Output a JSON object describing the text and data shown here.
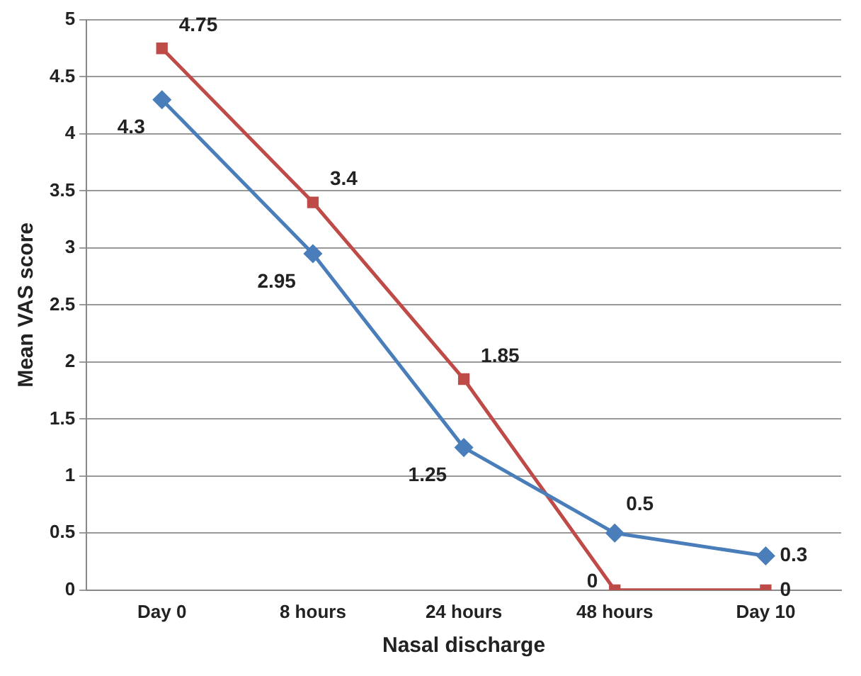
{
  "chart_data": {
    "type": "line",
    "xlabel": "Nasal discharge",
    "ylabel": "Mean VAS score",
    "categories": [
      "Day 0",
      "8 hours",
      "24 hours",
      "48 hours",
      "Day 10"
    ],
    "series": [
      {
        "color": "#4a7ebb",
        "marker": "diamond",
        "values": [
          4.3,
          2.95,
          1.25,
          0.5,
          0.3
        ]
      },
      {
        "color": "#be4b48",
        "marker": "square",
        "values": [
          4.75,
          3.4,
          1.85,
          0,
          0
        ]
      }
    ],
    "ylim": [
      0,
      5
    ],
    "yticks": [
      0,
      0.5,
      1,
      1.5,
      2,
      2.5,
      3,
      3.5,
      4,
      4.5,
      5
    ],
    "grid": "y",
    "data_labels": true
  }
}
